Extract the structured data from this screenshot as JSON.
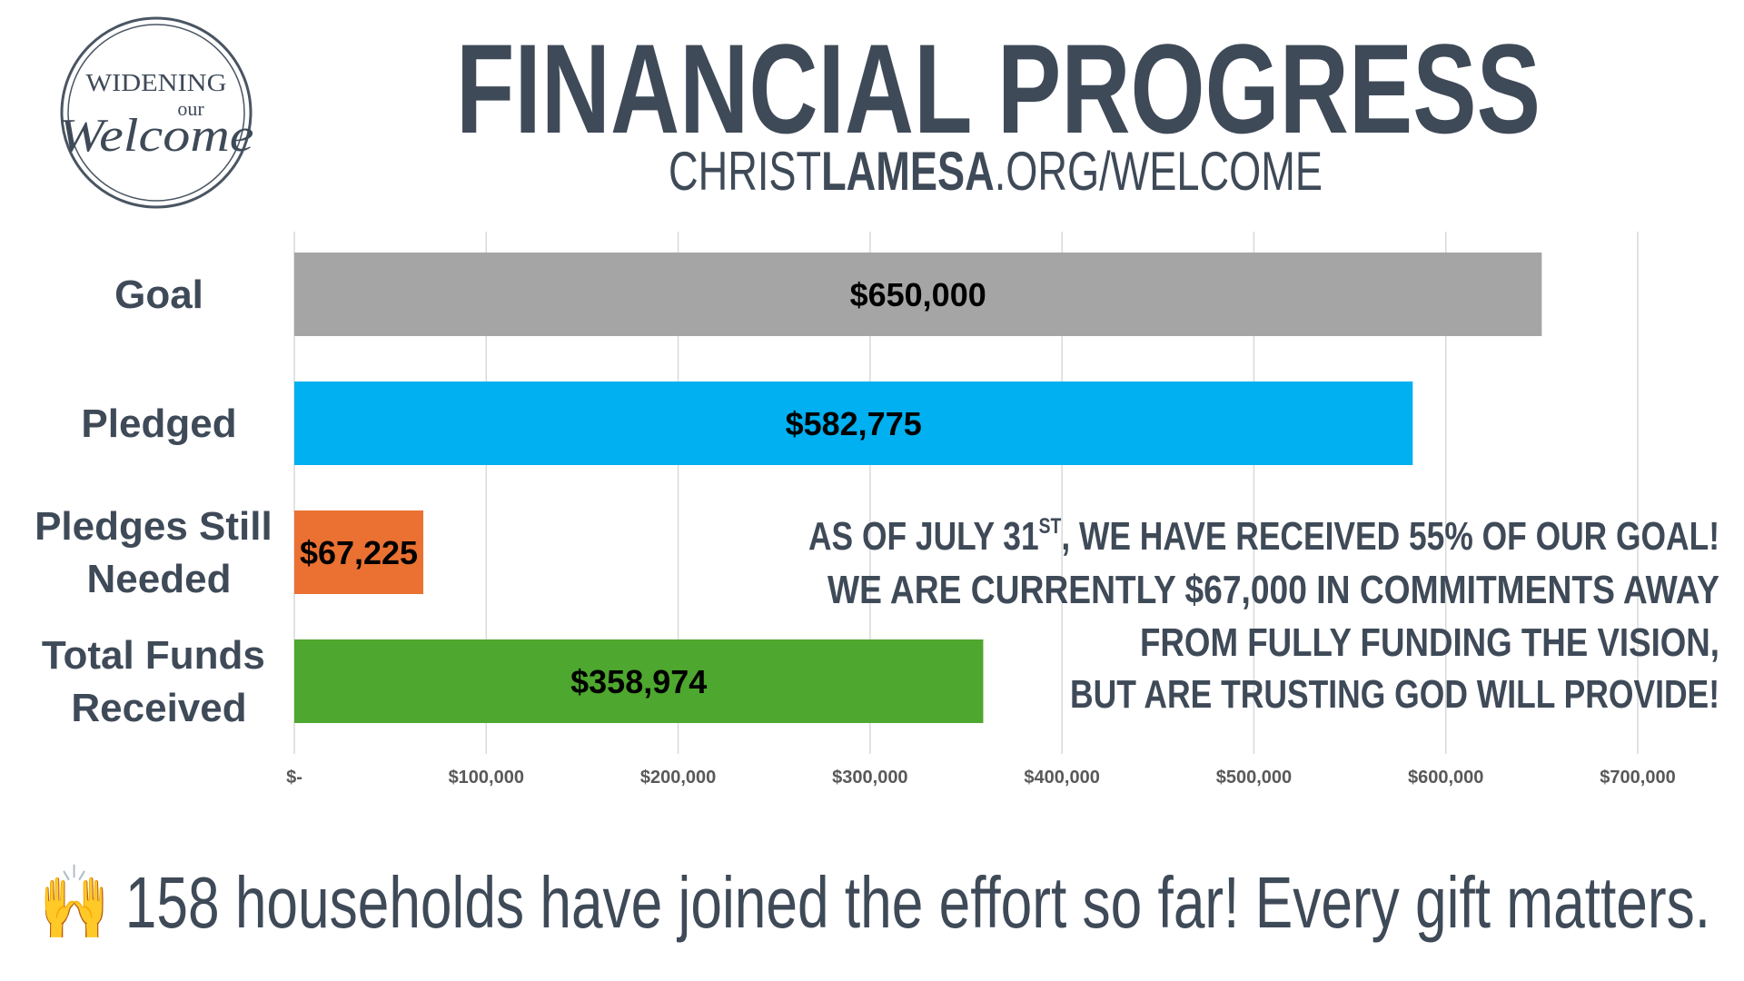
{
  "logo": {
    "line1": "WIDENING",
    "line2": "our",
    "line3": "Welcome"
  },
  "chart_data": {
    "type": "hbar",
    "title": "FINANCIAL PROGRESS",
    "subtitle": [
      "CHRIST",
      "LAMESA",
      ".ORG/WELCOME"
    ],
    "categories": [
      "Goal",
      "Pledged",
      "Pledges Still Needed",
      "Total Funds Received"
    ],
    "values": [
      650000,
      582775,
      67225,
      358974
    ],
    "value_labels": [
      "$650,000",
      "$582,775",
      "$67,225",
      "$358,974"
    ],
    "colors": [
      "#a5a5a5",
      "#00b0f0",
      "#ea7132",
      "#4ea72e"
    ],
    "xlim": [
      0,
      700000
    ],
    "xticks": [
      {
        "value": 0,
        "label": "$-"
      },
      {
        "value": 100000,
        "label": "$100,000"
      },
      {
        "value": 200000,
        "label": "$200,000"
      },
      {
        "value": 300000,
        "label": "$300,000"
      },
      {
        "value": 400000,
        "label": "$400,000"
      },
      {
        "value": 500000,
        "label": "$500,000"
      },
      {
        "value": 600000,
        "label": "$600,000"
      },
      {
        "value": 700000,
        "label": "$700,000"
      }
    ],
    "grid": true,
    "annotation": [
      [
        "AS OF JULY 31",
        "ST",
        ", WE HAVE RECEIVED 55% OF OUR GOAL!"
      ],
      [
        "WE ARE CURRENTLY $67,000 IN COMMITMENTS AWAY"
      ],
      [
        "FROM FULLY FUNDING THE VISION,"
      ],
      [
        "BUT ARE TRUSTING GOD WILL PROVIDE!"
      ]
    ]
  },
  "footer": "🙌 158 households have joined the effort so far! Every gift matters."
}
